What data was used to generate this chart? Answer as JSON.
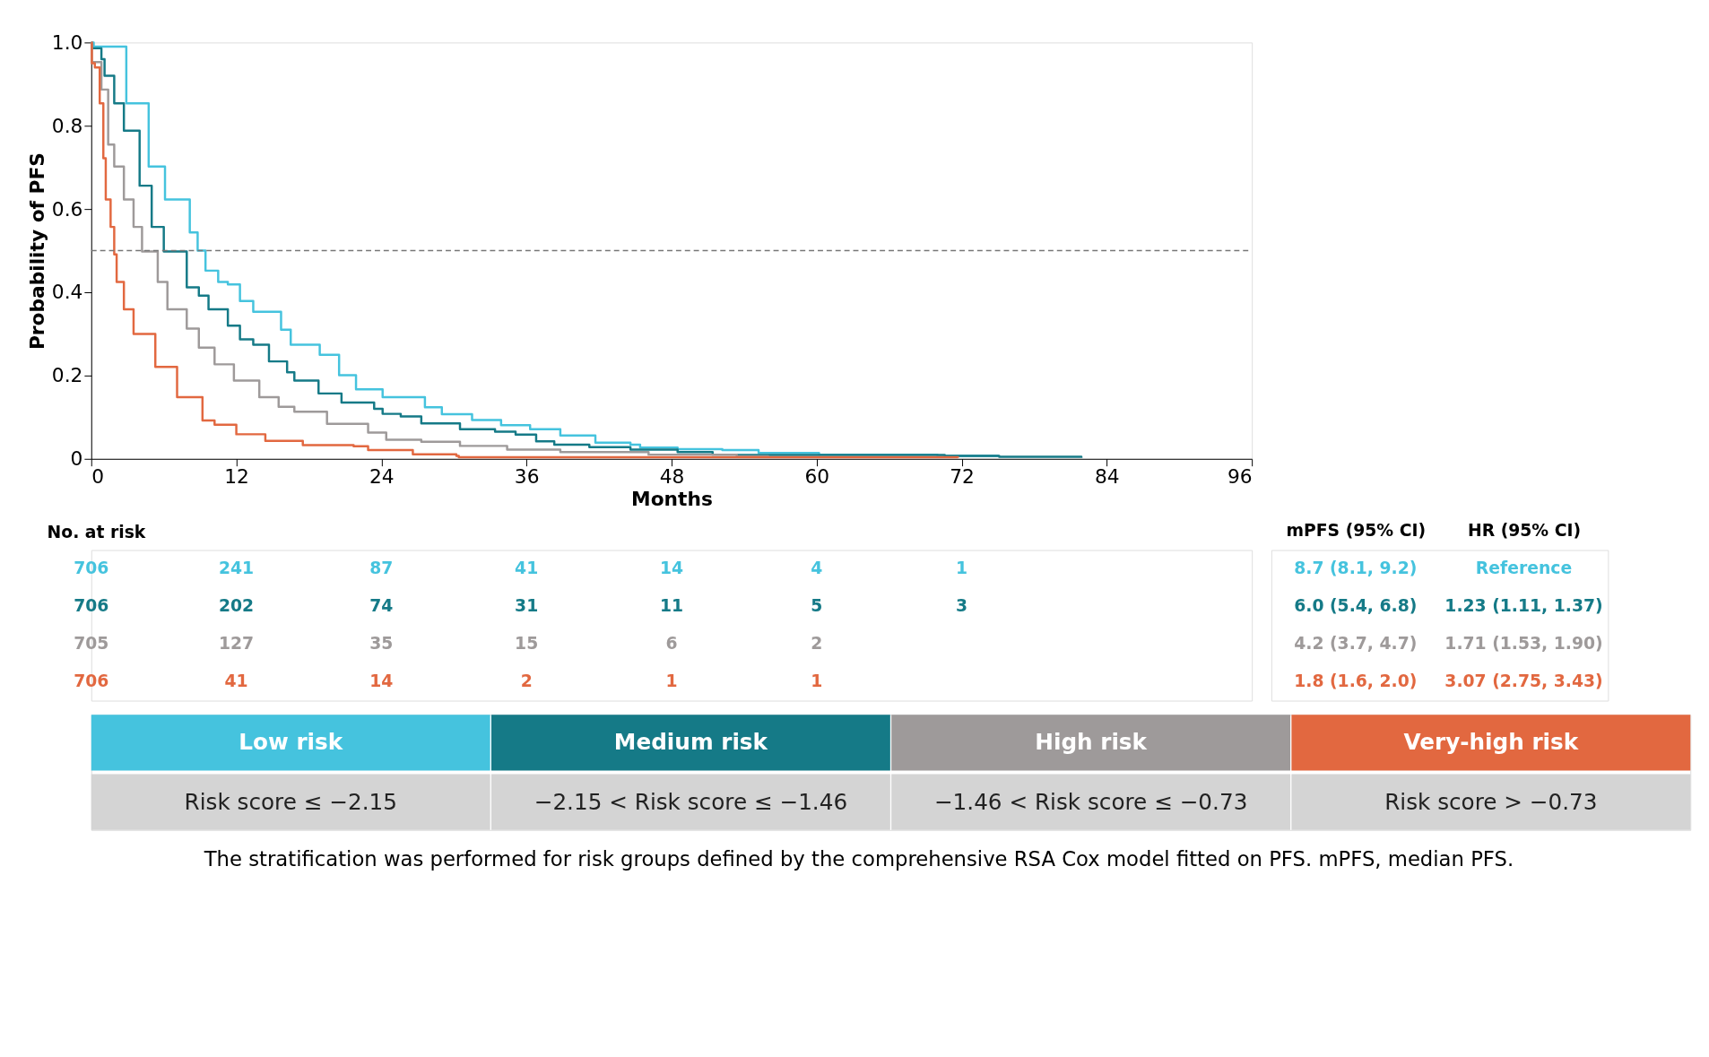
{
  "chart_data": [
    {
      "type": "step",
      "xlabel": "Months",
      "ylabel": "Probability of PFS",
      "xlim": [
        0,
        96
      ],
      "ylim": [
        0,
        1
      ],
      "xticks": [
        0,
        12,
        24,
        36,
        48,
        60,
        72,
        84,
        96
      ],
      "yticks": [
        0,
        0.2,
        0.4,
        0.6,
        0.8,
        {
          "value": 1,
          "label": "1.0"
        }
      ],
      "grid": false,
      "legend": false,
      "marker": "none",
      "line_style": "solid",
      "ref_lines": [
        {
          "axis": "y",
          "value": 0.5,
          "color": "#777777",
          "line_style": "dashed"
        }
      ],
      "annotations": [
        "The stratification was performed for risk groups defined by the comprehensive RSA Cox model fitted on PFS. mPFS, median PFS."
      ],
      "series": [
        {
          "name": "Low risk",
          "color": "#45c3de",
          "x": [
            0,
            0.2,
            2.9,
            4.75,
            6.1,
            8.15,
            8.8,
            9.45,
            10.5,
            11.3,
            12.3,
            13.4,
            15.7,
            16.5,
            18.9,
            20.5,
            21.9,
            24.1,
            27.6,
            29.0,
            31.5,
            33.9,
            36.3,
            38.8,
            41.7,
            44.6,
            45.4,
            48.5,
            52.2,
            55.2,
            60.2,
            70,
            75
          ],
          "values": [
            1.0,
            0.99,
            0.854,
            0.702,
            0.623,
            0.544,
            0.5,
            0.452,
            0.425,
            0.419,
            0.379,
            0.353,
            0.31,
            0.274,
            0.25,
            0.201,
            0.167,
            0.148,
            0.124,
            0.107,
            0.093,
            0.081,
            0.071,
            0.056,
            0.039,
            0.034,
            0.027,
            0.023,
            0.021,
            0.014,
            0.01,
            0.007,
            0.005
          ]
        },
        {
          "name": "Medium risk",
          "color": "#157a87",
          "x": [
            0,
            0.05,
            0.84,
            1.1,
            1.9,
            2.7,
            4.0,
            5.0,
            6.0,
            7.9,
            8.9,
            9.7,
            11.3,
            12.3,
            13.4,
            14.7,
            16.2,
            16.8,
            18.8,
            20.7,
            23.4,
            24.1,
            25.6,
            27.3,
            30.5,
            33.4,
            35.1,
            36.8,
            38.3,
            41.2,
            44.6,
            48.5,
            51.4,
            53.4,
            70.6,
            75.1,
            81.9
          ],
          "values": [
            1.0,
            0.986,
            0.96,
            0.92,
            0.854,
            0.788,
            0.656,
            0.557,
            0.498,
            0.412,
            0.392,
            0.359,
            0.32,
            0.287,
            0.274,
            0.234,
            0.208,
            0.188,
            0.157,
            0.135,
            0.12,
            0.108,
            0.102,
            0.085,
            0.071,
            0.065,
            0.058,
            0.042,
            0.034,
            0.028,
            0.022,
            0.016,
            0.01,
            0.009,
            0.007,
            0.005,
            0.002
          ]
        },
        {
          "name": "High risk",
          "color": "#9e9a9a",
          "x": [
            0,
            0.05,
            0.84,
            1.4,
            1.9,
            2.7,
            3.5,
            4.2,
            5.5,
            6.3,
            7.9,
            8.9,
            10.2,
            11.8,
            13.9,
            15.5,
            16.8,
            19.5,
            22.9,
            24.4,
            27.3,
            30.5,
            34.4,
            38.8,
            46.1,
            53.4,
            56
          ],
          "values": [
            1.0,
            0.953,
            0.887,
            0.755,
            0.702,
            0.623,
            0.557,
            0.498,
            0.425,
            0.359,
            0.313,
            0.267,
            0.227,
            0.188,
            0.148,
            0.125,
            0.113,
            0.084,
            0.063,
            0.046,
            0.041,
            0.031,
            0.022,
            0.016,
            0.01,
            0.006,
            0.004
          ]
        },
        {
          "name": "Very-high risk",
          "color": "#e26840",
          "x": [
            0,
            0.05,
            0.3,
            0.7,
            1.0,
            1.2,
            1.6,
            1.9,
            2.1,
            2.7,
            3.5,
            5.3,
            7.1,
            9.2,
            10.2,
            12.0,
            14.4,
            17.5,
            21.7,
            22.9,
            26.6,
            30.2,
            30.4,
            71.7
          ],
          "values": [
            1.0,
            0.95,
            0.94,
            0.854,
            0.722,
            0.623,
            0.557,
            0.491,
            0.425,
            0.359,
            0.3,
            0.221,
            0.148,
            0.092,
            0.082,
            0.059,
            0.043,
            0.033,
            0.03,
            0.021,
            0.011,
            0.007,
            0.004,
            0.003
          ]
        }
      ]
    },
    {
      "type": "other",
      "title": "No. at risk",
      "colors": [
        "#45c3de",
        "#157a87",
        "#9e9a9a",
        "#e26840"
      ],
      "cell_labels": [
        [
          "706",
          "241",
          "87",
          "41",
          "14",
          "4",
          "1"
        ],
        [
          "706",
          "202",
          "74",
          "31",
          "11",
          "5",
          "3"
        ],
        [
          "705",
          "127",
          "35",
          "15",
          "6",
          "2",
          null
        ],
        [
          "706",
          "41",
          "14",
          "2",
          "1",
          "1",
          null
        ]
      ]
    },
    {
      "type": "other",
      "categories": [
        "mPFS (95% CI)",
        "HR (95% CI)"
      ],
      "colors": [
        "#45c3de",
        "#157a87",
        "#9e9a9a",
        "#e26840"
      ],
      "cell_labels": [
        [
          "8.7 (8.1, 9.2)",
          "Reference"
        ],
        [
          "6.0 (5.4, 6.8)",
          "1.23 (1.11, 1.37)"
        ],
        [
          "4.2 (3.7, 4.7)",
          "1.71 (1.53, 1.90)"
        ],
        [
          "1.8 (1.6, 2.0)",
          "3.07 (2.75, 3.43)"
        ]
      ]
    },
    {
      "type": "other",
      "cell_labels": [
        [
          "Risk score ≤ −2.15",
          "−2.15 < Risk score ≤ −1.46",
          "−1.46 < Risk score ≤ −0.73",
          "Risk score > −0.73"
        ]
      ]
    }
  ]
}
